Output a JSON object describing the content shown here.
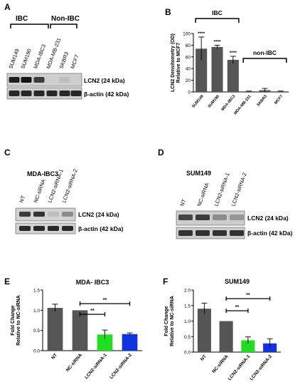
{
  "panels": {
    "A": {
      "letter": "A",
      "group_ibc": "IBC",
      "group_non_ibc": "Non-IBC",
      "lanes": [
        "SUM149",
        "SUM190",
        "MDA-IBC3",
        "MDA-MB-231",
        "SKBR3",
        "MCF7"
      ],
      "band_labels": [
        "LCN2 (24 kDa)",
        "β-actin (42 kDa)"
      ],
      "lcn2_band_intensity": [
        0.9,
        0.95,
        0.75,
        0.02,
        0.1,
        0.02
      ],
      "actin_band_intensity": [
        0.85,
        0.85,
        0.85,
        0.85,
        0.85,
        0.85
      ]
    },
    "C": {
      "letter": "C",
      "title": "MDA-IBC3",
      "lanes": [
        "NT",
        "NC-siRNA",
        "LCN2-siRNA-1",
        "LCN2-siRNA-2"
      ],
      "band_labels": [
        "LCN2 (24 kDa)",
        "β-actin (42 kDa)"
      ],
      "lcn2_band_intensity": [
        0.75,
        0.8,
        0.1,
        0.35
      ],
      "actin_band_intensity": [
        0.85,
        0.85,
        0.85,
        0.85
      ]
    },
    "D": {
      "letter": "D",
      "title": "SUM149",
      "lanes": [
        "NT",
        "NC-siRNA",
        "LCN2-siRNA-1",
        "LCN2-siRNA-2"
      ],
      "band_labels": [
        "LCN2 (24 kDa)",
        "β-actin (42 kDa)"
      ],
      "lcn2_band_intensity": [
        0.7,
        0.75,
        0.35,
        0.3
      ],
      "actin_band_intensity": [
        0.8,
        0.8,
        0.8,
        0.8
      ]
    }
  },
  "chart_data": [
    {
      "panel": "B",
      "type": "bar",
      "title": "",
      "ylabel_lines": [
        "LCN2 Densitometry (OD)",
        "Relative to MCF7"
      ],
      "ylim": [
        0,
        100
      ],
      "yticks": [
        0,
        20,
        40,
        60,
        80,
        100
      ],
      "categories": [
        "SUM149",
        "SUM190",
        "MDA-IBC3",
        "MDA-MB-231",
        "SKBR3",
        "MCF7"
      ],
      "values": [
        74,
        77,
        55,
        1,
        3,
        1
      ],
      "errors": [
        20,
        3,
        6,
        0.5,
        3,
        0.5
      ],
      "significance": [
        "****",
        "****",
        "****",
        "",
        "",
        ""
      ],
      "bar_color": "#555555",
      "brackets": [
        {
          "label": "IBC",
          "from": 0,
          "to": 2
        },
        {
          "label": "non-IBC",
          "from": 3,
          "to": 5
        }
      ]
    },
    {
      "panel": "E",
      "type": "bar",
      "title": "MDA- IBC3",
      "ylabel_lines": [
        "Fold  Change",
        "Relative to NC-siRNA"
      ],
      "ylim": [
        0,
        1.5
      ],
      "yticks": [
        0.0,
        0.5,
        1.0,
        1.5
      ],
      "categories": [
        "NT",
        "NC-siRNA",
        "LCN2-siRNA-1",
        "LCN2-siRNA-2"
      ],
      "values": [
        1.06,
        1.0,
        0.4,
        0.41
      ],
      "errors": [
        0.09,
        0.0,
        0.11,
        0.03
      ],
      "colors": [
        "#555555",
        "#555555",
        "#22dd22",
        "#1133dd"
      ],
      "comparisons": [
        {
          "from": 1,
          "to": 2,
          "label": "**"
        },
        {
          "from": 1,
          "to": 3,
          "label": "**"
        }
      ]
    },
    {
      "panel": "F",
      "type": "bar",
      "title": "SUM149",
      "ylabel_lines": [
        "Fold  Change",
        "Relative to NC-siRNA"
      ],
      "ylim": [
        0,
        2.0
      ],
      "yticks": [
        0.0,
        0.5,
        1.0,
        1.5,
        2.0
      ],
      "categories": [
        "NT",
        "NC-siRNA",
        "LCN2-siRNA-1",
        "LCN2-siRNA-2"
      ],
      "values": [
        1.4,
        1.0,
        0.38,
        0.28
      ],
      "errors": [
        0.18,
        0.0,
        0.11,
        0.15
      ],
      "colors": [
        "#555555",
        "#555555",
        "#22dd22",
        "#1133dd"
      ],
      "comparisons": [
        {
          "from": 1,
          "to": 2,
          "label": "**"
        },
        {
          "from": 1,
          "to": 3,
          "label": "**"
        }
      ]
    }
  ]
}
